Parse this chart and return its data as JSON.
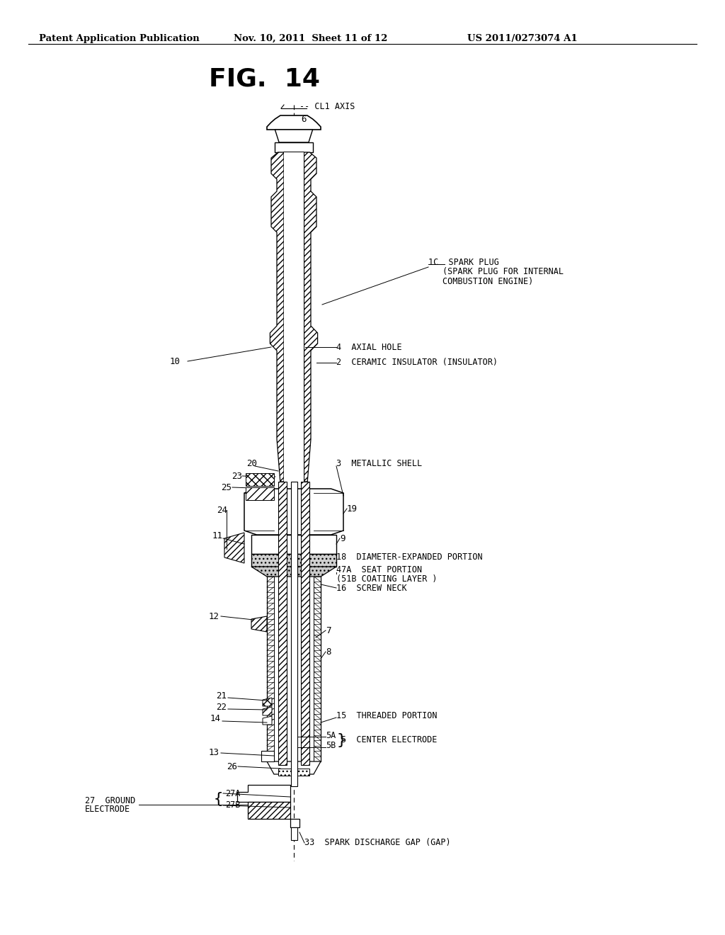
{
  "bg_color": "#ffffff",
  "header_left": "Patent Application Publication",
  "header_mid": "Nov. 10, 2011  Sheet 11 of 12",
  "header_right": "US 2011/0273074 A1",
  "figure_title": "FIG.  14"
}
